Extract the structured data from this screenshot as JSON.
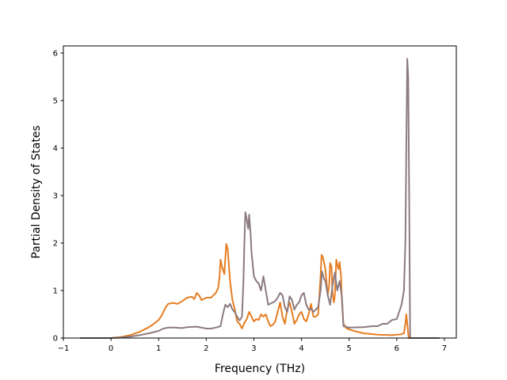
{
  "chart_data": {
    "type": "line",
    "title": "",
    "xlabel": "Frequency (THz)",
    "ylabel": "Partial Density of States",
    "xlim": [
      -1.0,
      7.25
    ],
    "ylim": [
      0,
      6.15
    ],
    "xticks": [
      -1,
      0,
      1,
      2,
      3,
      4,
      5,
      6,
      7
    ],
    "yticks": [
      0,
      1,
      2,
      3,
      4,
      5,
      6
    ],
    "grid": false,
    "legend": "none",
    "series": [
      {
        "color": "#e67e22",
        "points": [
          [
            -0.65,
            0
          ],
          [
            0,
            0
          ],
          [
            0.2,
            0.02
          ],
          [
            0.4,
            0.06
          ],
          [
            0.6,
            0.13
          ],
          [
            0.8,
            0.23
          ],
          [
            0.9,
            0.3
          ],
          [
            1.0,
            0.38
          ],
          [
            1.05,
            0.45
          ],
          [
            1.1,
            0.55
          ],
          [
            1.15,
            0.65
          ],
          [
            1.2,
            0.72
          ],
          [
            1.3,
            0.74
          ],
          [
            1.4,
            0.72
          ],
          [
            1.5,
            0.78
          ],
          [
            1.6,
            0.85
          ],
          [
            1.7,
            0.87
          ],
          [
            1.75,
            0.82
          ],
          [
            1.8,
            0.95
          ],
          [
            1.85,
            0.9
          ],
          [
            1.9,
            0.8
          ],
          [
            2.0,
            0.85
          ],
          [
            2.1,
            0.85
          ],
          [
            2.15,
            0.9
          ],
          [
            2.2,
            0.95
          ],
          [
            2.25,
            1.05
          ],
          [
            2.28,
            1.3
          ],
          [
            2.3,
            1.65
          ],
          [
            2.33,
            1.5
          ],
          [
            2.38,
            1.35
          ],
          [
            2.42,
            1.98
          ],
          [
            2.45,
            1.88
          ],
          [
            2.5,
            1.2
          ],
          [
            2.55,
            0.8
          ],
          [
            2.6,
            0.6
          ],
          [
            2.65,
            0.35
          ],
          [
            2.7,
            0.3
          ],
          [
            2.75,
            0.2
          ],
          [
            2.8,
            0.32
          ],
          [
            2.85,
            0.4
          ],
          [
            2.9,
            0.55
          ],
          [
            2.95,
            0.45
          ],
          [
            3.0,
            0.35
          ],
          [
            3.05,
            0.4
          ],
          [
            3.1,
            0.38
          ],
          [
            3.15,
            0.5
          ],
          [
            3.2,
            0.45
          ],
          [
            3.25,
            0.5
          ],
          [
            3.3,
            0.35
          ],
          [
            3.35,
            0.25
          ],
          [
            3.4,
            0.28
          ],
          [
            3.45,
            0.35
          ],
          [
            3.5,
            0.55
          ],
          [
            3.55,
            0.75
          ],
          [
            3.6,
            0.45
          ],
          [
            3.65,
            0.3
          ],
          [
            3.7,
            0.6
          ],
          [
            3.75,
            0.75
          ],
          [
            3.8,
            0.55
          ],
          [
            3.85,
            0.3
          ],
          [
            3.9,
            0.38
          ],
          [
            3.95,
            0.5
          ],
          [
            4.0,
            0.55
          ],
          [
            4.05,
            0.4
          ],
          [
            4.1,
            0.35
          ],
          [
            4.15,
            0.5
          ],
          [
            4.2,
            0.72
          ],
          [
            4.25,
            0.45
          ],
          [
            4.3,
            0.45
          ],
          [
            4.35,
            0.5
          ],
          [
            4.4,
            1.3
          ],
          [
            4.42,
            1.75
          ],
          [
            4.45,
            1.7
          ],
          [
            4.5,
            1.45
          ],
          [
            4.55,
            0.9
          ],
          [
            4.58,
            1.1
          ],
          [
            4.6,
            1.58
          ],
          [
            4.63,
            1.5
          ],
          [
            4.65,
            0.95
          ],
          [
            4.68,
            0.75
          ],
          [
            4.7,
            0.9
          ],
          [
            4.73,
            1.65
          ],
          [
            4.75,
            1.55
          ],
          [
            4.78,
            1.45
          ],
          [
            4.8,
            1.6
          ],
          [
            4.83,
            1.3
          ],
          [
            4.85,
            0.75
          ],
          [
            4.88,
            0.3
          ],
          [
            4.95,
            0.2
          ],
          [
            5.1,
            0.15
          ],
          [
            5.3,
            0.1
          ],
          [
            5.6,
            0.07
          ],
          [
            5.9,
            0.06
          ],
          [
            6.0,
            0.07
          ],
          [
            6.1,
            0.08
          ],
          [
            6.15,
            0.1
          ],
          [
            6.18,
            0.3
          ],
          [
            6.2,
            0.5
          ],
          [
            6.22,
            0.3
          ],
          [
            6.25,
            0
          ],
          [
            6.9,
            0
          ]
        ]
      },
      {
        "color": "#8c7b80",
        "points": [
          [
            -0.65,
            0
          ],
          [
            0,
            0
          ],
          [
            0.2,
            0.01
          ],
          [
            0.4,
            0.03
          ],
          [
            0.6,
            0.06
          ],
          [
            0.8,
            0.1
          ],
          [
            1.0,
            0.15
          ],
          [
            1.1,
            0.2
          ],
          [
            1.2,
            0.22
          ],
          [
            1.3,
            0.22
          ],
          [
            1.5,
            0.21
          ],
          [
            1.6,
            0.23
          ],
          [
            1.8,
            0.24
          ],
          [
            2.0,
            0.2
          ],
          [
            2.1,
            0.2
          ],
          [
            2.2,
            0.22
          ],
          [
            2.3,
            0.25
          ],
          [
            2.35,
            0.5
          ],
          [
            2.4,
            0.7
          ],
          [
            2.45,
            0.65
          ],
          [
            2.5,
            0.72
          ],
          [
            2.55,
            0.6
          ],
          [
            2.6,
            0.55
          ],
          [
            2.65,
            0.45
          ],
          [
            2.7,
            0.37
          ],
          [
            2.75,
            0.45
          ],
          [
            2.78,
            1.2
          ],
          [
            2.8,
            2.0
          ],
          [
            2.82,
            2.65
          ],
          [
            2.85,
            2.5
          ],
          [
            2.88,
            2.3
          ],
          [
            2.9,
            2.6
          ],
          [
            2.93,
            2.2
          ],
          [
            2.95,
            1.8
          ],
          [
            3.0,
            1.3
          ],
          [
            3.05,
            1.2
          ],
          [
            3.1,
            1.15
          ],
          [
            3.15,
            1.0
          ],
          [
            3.2,
            1.3
          ],
          [
            3.25,
            1.0
          ],
          [
            3.3,
            0.7
          ],
          [
            3.4,
            0.75
          ],
          [
            3.45,
            0.78
          ],
          [
            3.5,
            0.85
          ],
          [
            3.55,
            0.95
          ],
          [
            3.6,
            0.9
          ],
          [
            3.65,
            0.65
          ],
          [
            3.7,
            0.55
          ],
          [
            3.75,
            0.88
          ],
          [
            3.8,
            0.8
          ],
          [
            3.85,
            0.6
          ],
          [
            3.9,
            0.7
          ],
          [
            3.95,
            0.75
          ],
          [
            4.0,
            0.9
          ],
          [
            4.05,
            0.95
          ],
          [
            4.1,
            0.7
          ],
          [
            4.15,
            0.6
          ],
          [
            4.2,
            0.62
          ],
          [
            4.25,
            0.55
          ],
          [
            4.3,
            0.6
          ],
          [
            4.35,
            0.65
          ],
          [
            4.4,
            1.0
          ],
          [
            4.43,
            1.4
          ],
          [
            4.47,
            1.25
          ],
          [
            4.5,
            1.2
          ],
          [
            4.55,
            0.9
          ],
          [
            4.6,
            0.7
          ],
          [
            4.65,
            1.1
          ],
          [
            4.7,
            1.38
          ],
          [
            4.75,
            1.0
          ],
          [
            4.8,
            1.2
          ],
          [
            4.85,
            0.85
          ],
          [
            4.88,
            0.25
          ],
          [
            5.0,
            0.22
          ],
          [
            5.3,
            0.23
          ],
          [
            5.5,
            0.25
          ],
          [
            5.6,
            0.25
          ],
          [
            5.7,
            0.3
          ],
          [
            5.8,
            0.3
          ],
          [
            5.9,
            0.38
          ],
          [
            6.0,
            0.4
          ],
          [
            6.05,
            0.55
          ],
          [
            6.1,
            0.7
          ],
          [
            6.15,
            1.0
          ],
          [
            6.18,
            2.0
          ],
          [
            6.2,
            4.0
          ],
          [
            6.22,
            5.88
          ],
          [
            6.24,
            5.5
          ],
          [
            6.26,
            3.0
          ],
          [
            6.28,
            0
          ],
          [
            6.9,
            0
          ]
        ]
      }
    ]
  }
}
